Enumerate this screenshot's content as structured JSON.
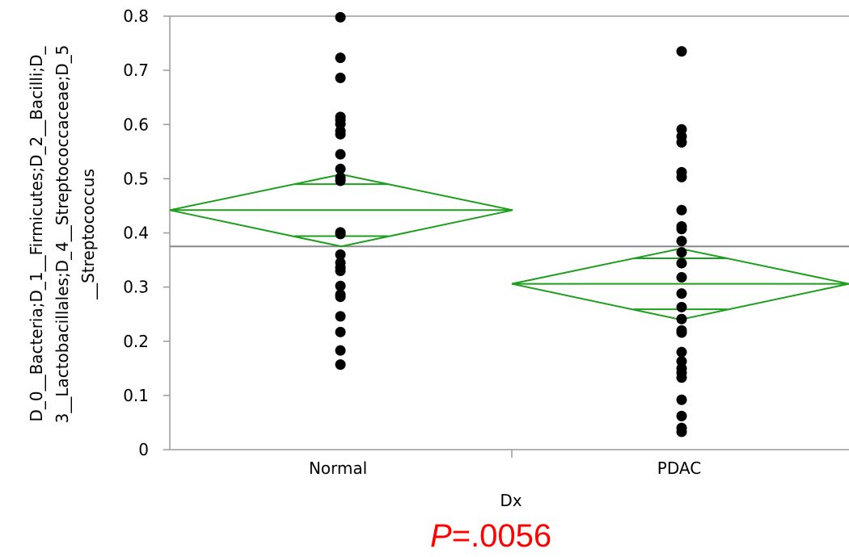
{
  "chart_data": {
    "type": "scatter",
    "ylabel_lines": [
      "D_0__Bacteria;D_1__Firmicutes;D_2__Bacilli;D_",
      "3__Lactobacillales;D_4__Streptococcaceae;D_5",
      "__Streptococcus"
    ],
    "xlabel": "Dx",
    "categories": [
      "Normal",
      "PDAC"
    ],
    "ylim": [
      0,
      0.8
    ],
    "yticks": [
      "0",
      "0.1",
      "0.2",
      "0.3",
      "0.4",
      "0.5",
      "0.6",
      "0.7",
      "0.8"
    ],
    "grand_mean": 0.375,
    "diamond_color": "#1e9e1e",
    "reference_line_color": "#888888",
    "point_color": "#000000",
    "groups": [
      {
        "name": "Normal",
        "mean": 0.442,
        "ci": [
          0.375,
          0.508
        ],
        "overlap_marks": [
          0.394,
          0.49
        ],
        "values": [
          0.798,
          0.723,
          0.686,
          0.614,
          0.608,
          0.601,
          0.588,
          0.582,
          0.545,
          0.518,
          0.502,
          0.496,
          0.401,
          0.398,
          0.36,
          0.345,
          0.336,
          0.33,
          0.302,
          0.286,
          0.282,
          0.246,
          0.217,
          0.183,
          0.157
        ]
      },
      {
        "name": "PDAC",
        "mean": 0.306,
        "ci": [
          0.24,
          0.371
        ],
        "overlap_marks": [
          0.259,
          0.353
        ],
        "values": [
          0.735,
          0.591,
          0.578,
          0.567,
          0.512,
          0.503,
          0.442,
          0.412,
          0.407,
          0.385,
          0.364,
          0.344,
          0.318,
          0.288,
          0.263,
          0.241,
          0.22,
          0.216,
          0.18,
          0.163,
          0.15,
          0.142,
          0.133,
          0.092,
          0.062,
          0.04,
          0.033
        ]
      }
    ]
  },
  "annotation": {
    "p_letter": "P",
    "p_value": "=.0056",
    "color": "#ff0000"
  }
}
